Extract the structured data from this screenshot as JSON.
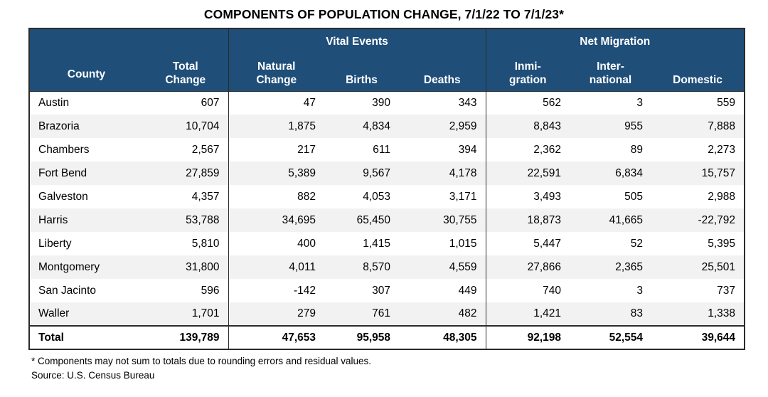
{
  "display": {
    "title": "COMPONENTS OF POPULATION CHANGE, 7/1/22 TO 7/1/23*",
    "headers": {
      "county": "County",
      "total_change": "Total\nChange",
      "vital_events": "Vital Events",
      "net_migration": "Net Migration",
      "natural_change": "Natural\nChange",
      "births": "Births",
      "deaths": "Deaths",
      "immigration": "Inmi-\ngration",
      "international": "Inter-\nnational",
      "domestic": "Domestic"
    },
    "rows": [
      [
        "Austin",
        "607",
        "47",
        "390",
        "343",
        "562",
        "3",
        "559"
      ],
      [
        "Brazoria",
        "10,704",
        "1,875",
        "4,834",
        "2,959",
        "8,843",
        "955",
        "7,888"
      ],
      [
        "Chambers",
        "2,567",
        "217",
        "611",
        "394",
        "2,362",
        "89",
        "2,273"
      ],
      [
        "Fort Bend",
        "27,859",
        "5,389",
        "9,567",
        "4,178",
        "22,591",
        "6,834",
        "15,757"
      ],
      [
        "Galveston",
        "4,357",
        "882",
        "4,053",
        "3,171",
        "3,493",
        "505",
        "2,988"
      ],
      [
        "Harris",
        "53,788",
        "34,695",
        "65,450",
        "30,755",
        "18,873",
        "41,665",
        "-22,792"
      ],
      [
        "Liberty",
        "5,810",
        "400",
        "1,415",
        "1,015",
        "5,447",
        "52",
        "5,395"
      ],
      [
        "Montgomery",
        "31,800",
        "4,011",
        "8,570",
        "4,559",
        "27,866",
        "2,365",
        "25,501"
      ],
      [
        "San Jacinto",
        "596",
        "-142",
        "307",
        "449",
        "740",
        "3",
        "737"
      ],
      [
        "Waller",
        "1,701",
        "279",
        "761",
        "482",
        "1,421",
        "83",
        "1,338"
      ]
    ],
    "total_row": [
      "Total",
      "139,789",
      "47,653",
      "95,958",
      "48,305",
      "92,198",
      "52,554",
      "39,644"
    ],
    "footnote": "* Components may not sum to totals due to rounding errors and residual values.",
    "source": "Source: U.S. Census Bureau"
  },
  "colors": {
    "header_bg": "#1F4E79",
    "header_text": "#FFFFFF",
    "row_stripe": "#F2F2F2",
    "border": "#2B2B2B",
    "text": "#000000"
  },
  "chart_data": {
    "type": "table",
    "title": "COMPONENTS OF POPULATION CHANGE, 7/1/22 TO 7/1/23*",
    "column_groups": [
      {
        "label": "Vital Events",
        "columns": [
          "Natural Change",
          "Births",
          "Deaths"
        ]
      },
      {
        "label": "Net Migration",
        "columns": [
          "Inmi-gration",
          "Inter-national",
          "Domestic"
        ]
      }
    ],
    "columns": [
      "County",
      "Total Change",
      "Natural Change",
      "Births",
      "Deaths",
      "Inmi-gration",
      "Inter-national",
      "Domestic"
    ],
    "rows": [
      [
        "Austin",
        607,
        47,
        390,
        343,
        562,
        3,
        559
      ],
      [
        "Brazoria",
        10704,
        1875,
        4834,
        2959,
        8843,
        955,
        7888
      ],
      [
        "Chambers",
        2567,
        217,
        611,
        394,
        2362,
        89,
        2273
      ],
      [
        "Fort Bend",
        27859,
        5389,
        9567,
        4178,
        22591,
        6834,
        15757
      ],
      [
        "Galveston",
        4357,
        882,
        4053,
        3171,
        3493,
        505,
        2988
      ],
      [
        "Harris",
        53788,
        34695,
        65450,
        30755,
        18873,
        41665,
        -22792
      ],
      [
        "Liberty",
        5810,
        400,
        1415,
        1015,
        5447,
        52,
        5395
      ],
      [
        "Montgomery",
        31800,
        4011,
        8570,
        4559,
        27866,
        2365,
        25501
      ],
      [
        "San Jacinto",
        596,
        -142,
        307,
        449,
        740,
        3,
        737
      ],
      [
        "Waller",
        1701,
        279,
        761,
        482,
        1421,
        83,
        1338
      ]
    ],
    "total_row": [
      "Total",
      139789,
      47653,
      95958,
      48305,
      92198,
      52554,
      39644
    ],
    "footnote": "* Components may not sum to totals due to rounding errors and residual values.",
    "source": "Source: U.S. Census Bureau"
  }
}
